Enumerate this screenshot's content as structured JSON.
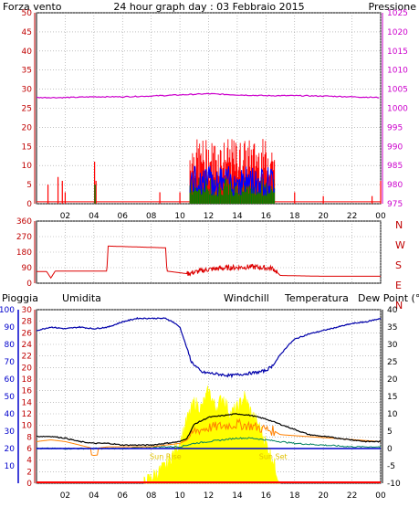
{
  "header": {
    "left_label": "Forza vento",
    "title": "24 hour graph day : 03 Febbraio 2015",
    "right_label": "Pressione"
  },
  "time_ticks": [
    "02",
    "04",
    "06",
    "08",
    "10",
    "12",
    "14",
    "16",
    "18",
    "20",
    "22",
    "00"
  ],
  "colors": {
    "frame": "#000000",
    "wind_axis": "#c00000",
    "pressure_axis": "#cc00cc",
    "rain_axis": "#c00000",
    "humidity_axis": "#0000cc",
    "temp_axis": "#000000",
    "grid": "#9a9a9a",
    "wind_gust": "#ff0000",
    "wind_avg": "#008000",
    "wind_speed": "#0000ff",
    "pressure": "#cc00cc",
    "direction": "#dd0000",
    "rain": "#ff0000",
    "humidity": "#0000aa",
    "windchill": "#ff8000",
    "temperature": "#000000",
    "dewpoint": "#008060",
    "solar": "#ffff00",
    "sun_label": "#e0c000",
    "blue_line": "#0000cc"
  },
  "chart_data": [
    {
      "type": "line",
      "title": "24 hour graph day : 03 Febbraio 2015",
      "left_axis_label": "Forza vento",
      "right_axis_label": "Pressione",
      "x_ticks": [
        "02",
        "04",
        "06",
        "08",
        "10",
        "12",
        "14",
        "16",
        "18",
        "20",
        "22",
        "00"
      ],
      "left_ylim": [
        0,
        50
      ],
      "left_yticks": [
        0,
        5,
        10,
        15,
        20,
        25,
        30,
        35,
        40,
        45,
        50
      ],
      "right_ylim": [
        975,
        1025
      ],
      "right_yticks": [
        975,
        980,
        985,
        990,
        995,
        1000,
        1005,
        1010,
        1015,
        1020,
        1025
      ],
      "grid": true,
      "series": [
        {
          "name": "Pressione",
          "axis": "right",
          "x": [
            0,
            2,
            4,
            6,
            8,
            10,
            12,
            14,
            16,
            18,
            20,
            22,
            24
          ],
          "values": [
            1002.8,
            1002.8,
            1003.0,
            1003.0,
            1003.2,
            1003.5,
            1003.8,
            1003.5,
            1003.3,
            1003.3,
            1003.2,
            1003.0,
            1002.8
          ]
        }
      ],
      "gust_spikes": [
        {
          "x": 0.8,
          "value": 5
        },
        {
          "x": 1.5,
          "value": 7
        },
        {
          "x": 1.8,
          "value": 6
        },
        {
          "x": 2.0,
          "value": 3
        },
        {
          "x": 4.05,
          "value": 11
        },
        {
          "x": 4.15,
          "value": 6
        },
        {
          "x": 8.6,
          "value": 3
        },
        {
          "x": 10.0,
          "value": 3
        },
        {
          "x": 18.0,
          "value": 3
        },
        {
          "x": 20.0,
          "value": 2
        },
        {
          "x": 23.4,
          "value": 2
        },
        {
          "x": 24.0,
          "value": 6
        }
      ],
      "active_period": {
        "start": 10.7,
        "end": 16.6,
        "gust_range": [
          6,
          17
        ],
        "avg_range": [
          2,
          7
        ],
        "speed_range": [
          2,
          10
        ]
      }
    },
    {
      "type": "scatter",
      "title": "",
      "right_labels": [
        "N",
        "W",
        "S",
        "E",
        "N"
      ],
      "ylim": [
        0,
        360
      ],
      "yticks": [
        0,
        90,
        180,
        270,
        360
      ],
      "grid": true,
      "series": [
        {
          "name": "",
          "x": [
            0,
            0.7,
            1.0,
            1.3,
            2.0,
            4.9,
            5.0,
            9.0,
            9.1,
            10.5,
            12.0,
            13.5,
            15.0,
            16.5,
            17.0,
            20.0,
            24.0
          ],
          "values": [
            68,
            68,
            30,
            70,
            70,
            70,
            215,
            205,
            70,
            55,
            80,
            90,
            95,
            85,
            45,
            40,
            40
          ]
        }
      ]
    },
    {
      "type": "line",
      "title": "",
      "labels": {
        "rain": "Pioggia",
        "humidity": "Umidita",
        "windchill": "Windchill",
        "temperature": "Temperatura",
        "dewpoint": "Dew Point (°C"
      },
      "humidity_ylim": [
        0,
        100
      ],
      "humidity_yticks": [
        10,
        20,
        30,
        40,
        50,
        60,
        70,
        80,
        90,
        100
      ],
      "rain_ylim": [
        0,
        30
      ],
      "rain_yticks": [
        0,
        2,
        4,
        6,
        8,
        10,
        12,
        14,
        16,
        18,
        20,
        22,
        24,
        26,
        28,
        30
      ],
      "temp_ylim": [
        -10,
        40
      ],
      "temp_yticks": [
        -10,
        -5,
        0,
        5,
        10,
        15,
        20,
        25,
        30,
        35,
        40
      ],
      "grid": true,
      "annotations": [
        {
          "text": "Sun Rise",
          "x": 9.0
        },
        {
          "text": "Sun Set",
          "x": 16.5
        }
      ],
      "series": [
        {
          "name": "Umidita",
          "axis": "humidity",
          "x": [
            0,
            0.5,
            1,
            2,
            3,
            4,
            5,
            6,
            7,
            8,
            9,
            9.5,
            10,
            10.4,
            10.8,
            11.5,
            12.5,
            13.5,
            14.5,
            15.5,
            16.0,
            16.5,
            17,
            17.5,
            18,
            19,
            20,
            21,
            22,
            23,
            24
          ],
          "values": [
            88,
            89,
            90,
            89,
            90,
            89,
            90,
            93,
            95,
            95,
            95,
            93,
            90,
            80,
            70,
            64,
            63,
            62,
            63,
            64,
            65,
            68,
            74,
            79,
            83,
            86,
            88,
            90,
            92,
            93,
            95
          ]
        },
        {
          "name": "Temperatura",
          "axis": "temp",
          "x": [
            0,
            1,
            2,
            3,
            4,
            5,
            6,
            7,
            8,
            9,
            10,
            10.5,
            11,
            12,
            13,
            14,
            15,
            16,
            17,
            18,
            19,
            20,
            21,
            22,
            23,
            24
          ],
          "values": [
            3.5,
            3.5,
            3.0,
            2.0,
            1.5,
            1.5,
            1.0,
            1.0,
            1.0,
            1.5,
            2.0,
            3.0,
            7.0,
            9.0,
            9.5,
            10.0,
            9.5,
            8.5,
            7.0,
            5.5,
            4.0,
            3.5,
            3.0,
            2.5,
            2.0,
            2.0
          ]
        },
        {
          "name": "Windchill",
          "axis": "temp",
          "x": [
            0,
            1,
            2,
            3,
            4,
            5,
            6,
            7,
            8,
            9,
            10,
            10.5,
            11,
            12,
            13,
            14,
            15,
            16,
            16.6,
            17,
            24
          ],
          "values": [
            2.0,
            2.5,
            2.0,
            1.0,
            0.0,
            0.5,
            0.5,
            0.5,
            0.5,
            1.0,
            1.5,
            2.5,
            5.0,
            6.0,
            6.5,
            7.0,
            6.5,
            5.5,
            5.0,
            4.0,
            2.0
          ]
        },
        {
          "name": "Dew Point (°C",
          "axis": "temp",
          "x": [
            0,
            2,
            4,
            6,
            8,
            10,
            11,
            12,
            13,
            14,
            15,
            16,
            17,
            18,
            20,
            22,
            24
          ],
          "values": [
            0.0,
            0.0,
            0.0,
            0.0,
            0.5,
            0.5,
            1.5,
            2.0,
            2.5,
            3.0,
            3.0,
            2.5,
            2.0,
            1.5,
            1.0,
            0.5,
            0.5
          ]
        },
        {
          "name": "Pioggia",
          "axis": "rain",
          "x": [
            0,
            24
          ],
          "values": [
            0,
            0
          ]
        }
      ],
      "solar_profile": {
        "x": [
          7.5,
          8.0,
          9.0,
          10.0,
          10.5,
          11.0,
          11.5,
          12.0,
          12.5,
          13.0,
          13.5,
          14.0,
          14.5,
          15.0,
          15.5,
          16.0,
          16.5,
          17.0
        ],
        "values": [
          0,
          1,
          3,
          7,
          11,
          14,
          13,
          16,
          13,
          15,
          12,
          13,
          15,
          12,
          10,
          7,
          4,
          0
        ]
      }
    }
  ]
}
